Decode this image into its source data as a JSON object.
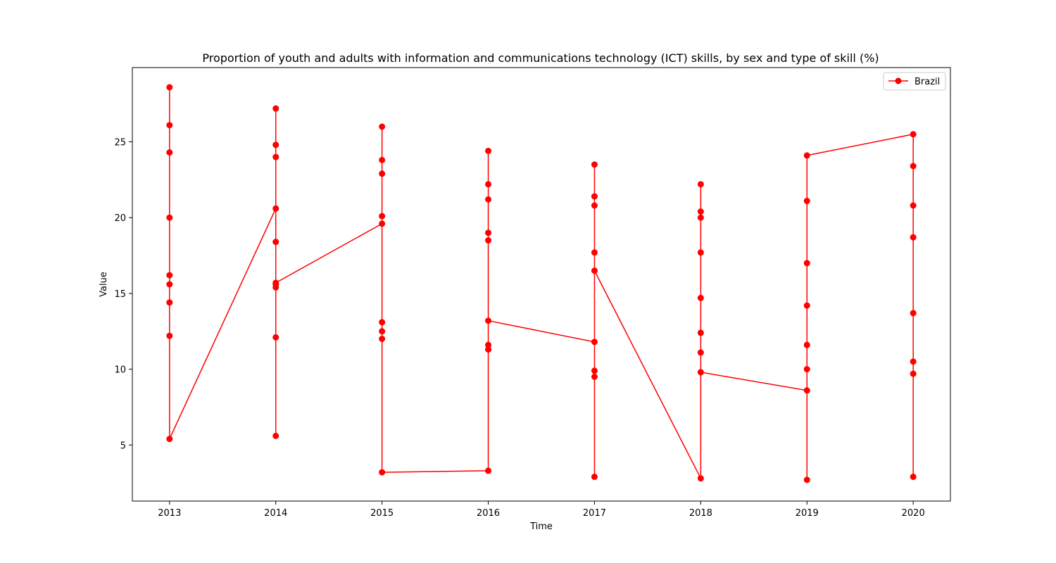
{
  "chart_data": {
    "type": "line",
    "title": "Proportion of youth and adults with information and communications technology (ICT) skills, by sex and type of skill (%)",
    "xlabel": "Time",
    "ylabel": "Value",
    "xlim": [
      2012.65,
      2020.35
    ],
    "ylim": [
      1.3,
      29.9
    ],
    "x_ticks": [
      "2013",
      "2014",
      "2015",
      "2016",
      "2017",
      "2018",
      "2019",
      "2020"
    ],
    "y_ticks": [
      "5",
      "10",
      "15",
      "20",
      "25"
    ],
    "legend_position": "top-right",
    "grid": false,
    "series": [
      {
        "name": "Brazil",
        "color": "#ff0000",
        "marker": "circle",
        "points": [
          [
            2013,
            28.6
          ],
          [
            2013,
            26.1
          ],
          [
            2013,
            24.3
          ],
          [
            2013,
            20.0
          ],
          [
            2013,
            16.2
          ],
          [
            2013,
            15.6
          ],
          [
            2013,
            14.4
          ],
          [
            2013,
            12.2
          ],
          [
            2013,
            5.4
          ],
          [
            2014,
            20.6
          ],
          [
            2014,
            27.2
          ],
          [
            2014,
            24.8
          ],
          [
            2014,
            24.0
          ],
          [
            2014,
            18.4
          ],
          [
            2014,
            15.6
          ],
          [
            2014,
            15.4
          ],
          [
            2014,
            12.1
          ],
          [
            2014,
            5.6
          ],
          [
            2014,
            15.7
          ],
          [
            2015,
            19.6
          ],
          [
            2015,
            26.0
          ],
          [
            2015,
            23.8
          ],
          [
            2015,
            22.9
          ],
          [
            2015,
            20.1
          ],
          [
            2015,
            13.1
          ],
          [
            2015,
            12.5
          ],
          [
            2015,
            12.0
          ],
          [
            2015,
            3.2
          ],
          [
            2016,
            3.3
          ],
          [
            2016,
            24.4
          ],
          [
            2016,
            22.2
          ],
          [
            2016,
            21.2
          ],
          [
            2016,
            19.0
          ],
          [
            2016,
            18.5
          ],
          [
            2016,
            11.6
          ],
          [
            2016,
            11.3
          ],
          [
            2016,
            13.2
          ],
          [
            2017,
            11.8
          ],
          [
            2017,
            23.5
          ],
          [
            2017,
            21.4
          ],
          [
            2017,
            20.8
          ],
          [
            2017,
            17.7
          ],
          [
            2017,
            9.9
          ],
          [
            2017,
            9.5
          ],
          [
            2017,
            2.9
          ],
          [
            2017,
            16.5
          ],
          [
            2018,
            2.8
          ],
          [
            2018,
            22.2
          ],
          [
            2018,
            20.4
          ],
          [
            2018,
            20.0
          ],
          [
            2018,
            17.7
          ],
          [
            2018,
            14.7
          ],
          [
            2018,
            12.4
          ],
          [
            2018,
            11.1
          ],
          [
            2018,
            9.8
          ],
          [
            2019,
            8.6
          ],
          [
            2019,
            2.7
          ],
          [
            2019,
            10.0
          ],
          [
            2019,
            11.6
          ],
          [
            2019,
            14.2
          ],
          [
            2019,
            17.0
          ],
          [
            2019,
            21.1
          ],
          [
            2019,
            24.1
          ],
          [
            2020,
            25.5
          ],
          [
            2020,
            23.4
          ],
          [
            2020,
            20.8
          ],
          [
            2020,
            18.7
          ],
          [
            2020,
            13.7
          ],
          [
            2020,
            10.5
          ],
          [
            2020,
            9.7
          ],
          [
            2020,
            2.9
          ]
        ]
      }
    ]
  }
}
